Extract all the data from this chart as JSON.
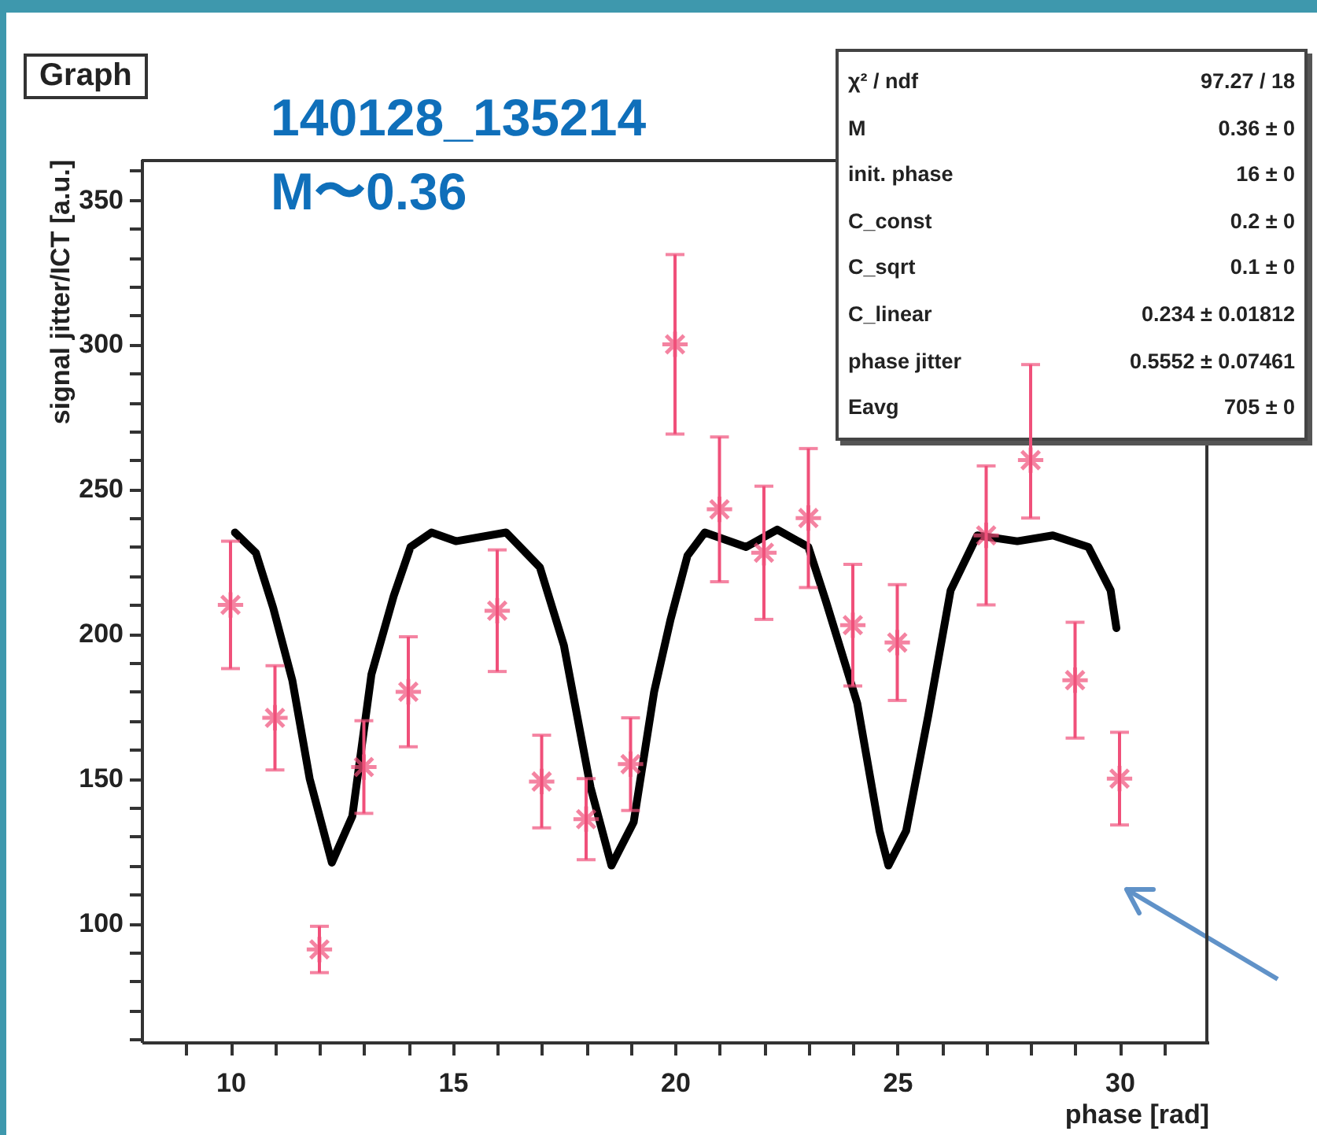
{
  "chart_data": {
    "type": "scatter",
    "title": "Graph",
    "xlabel": "phase [rad]",
    "ylabel": "signal jitter/ICT [a.u.]",
    "annotations": [
      "140128_135214",
      "M〜0.36",
      "χ² / ndf 97.27 / 18",
      "M 0.36 ± 0",
      "init. phase 16 ± 0",
      "C_const 0.2 ± 0",
      "C_sqrt 0.1 ± 0",
      "C_linear 0.234 ± 0.01812",
      "phase jitter 0.5552 ± 0.07461",
      "Eavg 705 ± 0"
    ],
    "xlim": [
      8,
      32
    ],
    "ylim": [
      59,
      364
    ],
    "xticks": [
      {
        "value": 9,
        "label": null
      },
      10,
      {
        "value": 11,
        "label": null
      },
      {
        "value": 12,
        "label": null
      },
      {
        "value": 13,
        "label": null
      },
      {
        "value": 14,
        "label": null
      },
      15,
      {
        "value": 16,
        "label": null
      },
      {
        "value": 17,
        "label": null
      },
      {
        "value": 18,
        "label": null
      },
      {
        "value": 19,
        "label": null
      },
      20,
      {
        "value": 21,
        "label": null
      },
      {
        "value": 22,
        "label": null
      },
      {
        "value": 23,
        "label": null
      },
      {
        "value": 24,
        "label": null
      },
      25,
      {
        "value": 26,
        "label": null
      },
      {
        "value": 27,
        "label": null
      },
      {
        "value": 28,
        "label": null
      },
      {
        "value": 29,
        "label": null
      },
      30,
      {
        "value": 31,
        "label": null
      }
    ],
    "yticks": [
      {
        "value": 60,
        "label": null
      },
      {
        "value": 70,
        "label": null
      },
      {
        "value": 80,
        "label": null
      },
      {
        "value": 90,
        "label": null
      },
      100,
      {
        "value": 110,
        "label": null
      },
      {
        "value": 120,
        "label": null
      },
      {
        "value": 130,
        "label": null
      },
      {
        "value": 140,
        "label": null
      },
      150,
      {
        "value": 160,
        "label": null
      },
      {
        "value": 170,
        "label": null
      },
      {
        "value": 180,
        "label": null
      },
      {
        "value": 190,
        "label": null
      },
      200,
      {
        "value": 210,
        "label": null
      },
      {
        "value": 220,
        "label": null
      },
      {
        "value": 230,
        "label": null
      },
      {
        "value": 240,
        "label": null
      },
      250,
      {
        "value": 260,
        "label": null
      },
      {
        "value": 270,
        "label": null
      },
      {
        "value": 280,
        "label": null
      },
      {
        "value": 290,
        "label": null
      },
      300,
      {
        "value": 310,
        "label": null
      },
      {
        "value": 320,
        "label": null
      },
      {
        "value": 330,
        "label": null
      },
      {
        "value": 340,
        "label": null
      },
      350,
      {
        "value": 360,
        "label": null
      }
    ],
    "grid": false,
    "series": [
      {
        "color": "#f0507a",
        "marker": "cross",
        "x": [
          10,
          11,
          12,
          13,
          14,
          16,
          17,
          18,
          19,
          20,
          21,
          22,
          23,
          24,
          25,
          26,
          27,
          28,
          29,
          30
        ],
        "values": [
          210,
          171,
          91,
          154,
          180,
          208,
          149,
          136,
          155,
          300,
          243,
          228,
          240,
          203,
          197,
          null,
          234,
          260,
          184,
          150
        ],
        "errors": [
          22,
          18,
          8,
          16,
          19,
          21,
          16,
          14,
          16,
          31,
          25,
          23,
          24,
          21,
          20,
          null,
          24,
          [
            240,
            293
          ],
          20,
          16
        ]
      },
      {
        "type": "line",
        "color": "#000000",
        "marker": "none",
        "line_style": "solid",
        "x": [
          10.1,
          10.57,
          10.96,
          11.39,
          11.78,
          12.28,
          12.74,
          13.17,
          13.67,
          14.05,
          14.52,
          15.07,
          16.2,
          16.96,
          17.5,
          18.1,
          18.57,
          19.07,
          19.53,
          19.9,
          20.28,
          20.67,
          21.6,
          22.3,
          23.0,
          23.4,
          24.1,
          24.6,
          24.8,
          25.2,
          25.7,
          26.2,
          26.8,
          27.7,
          28.5,
          29.3,
          29.8,
          29.93
        ],
        "values": [
          235,
          228,
          209,
          184,
          150,
          121,
          137,
          186,
          213,
          230,
          235,
          232,
          235,
          223,
          196,
          147,
          120,
          135,
          180,
          205,
          227,
          235,
          230,
          236,
          230,
          211,
          176,
          132,
          120,
          132,
          172,
          215,
          234,
          232,
          234,
          230,
          215,
          202
        ]
      }
    ]
  }
}
